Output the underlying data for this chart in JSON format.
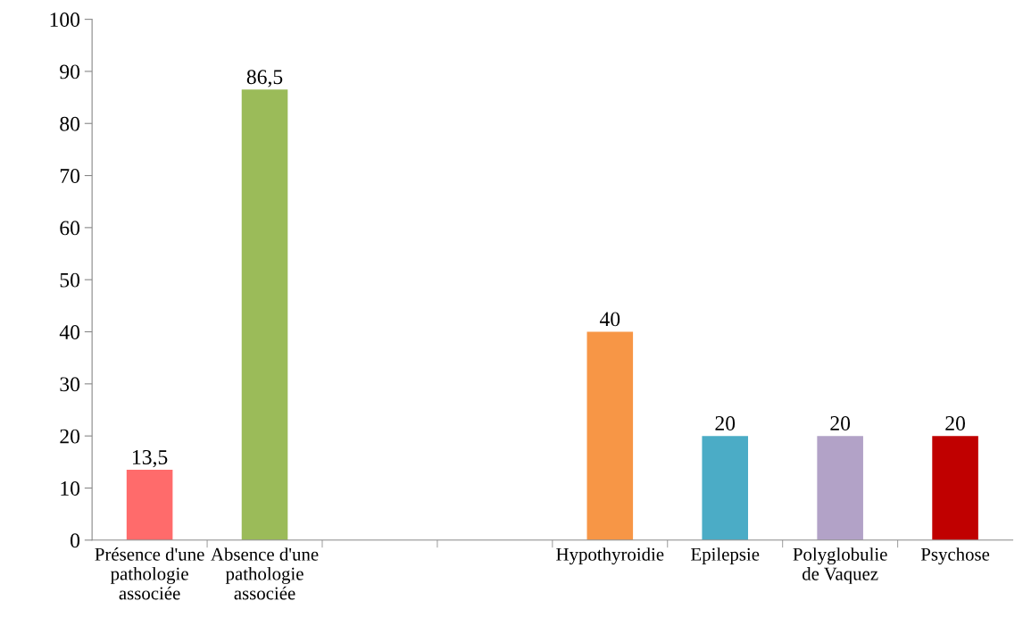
{
  "chart_data": {
    "type": "bar",
    "categories": [
      "Présence d'une pathologie associée",
      "Absence d'une pathologie associée",
      null,
      null,
      "Hypothyroidie",
      "Epilepsie",
      "Polyglobulie de Vaquez",
      "Psychose"
    ],
    "values": [
      13.5,
      86.5,
      null,
      null,
      40,
      20,
      20,
      20
    ],
    "value_labels": [
      "13,5",
      "86,5",
      null,
      null,
      "40",
      "20",
      "20",
      "20"
    ],
    "colors": [
      "#ff6b6b",
      "#9bbb59",
      null,
      null,
      "#f79646",
      "#4bacc6",
      "#b2a2c7",
      "#c00000"
    ],
    "ylim": [
      0,
      100
    ],
    "yticks": [
      0,
      10,
      20,
      30,
      40,
      50,
      60,
      70,
      80,
      90,
      100
    ],
    "grid": false
  }
}
